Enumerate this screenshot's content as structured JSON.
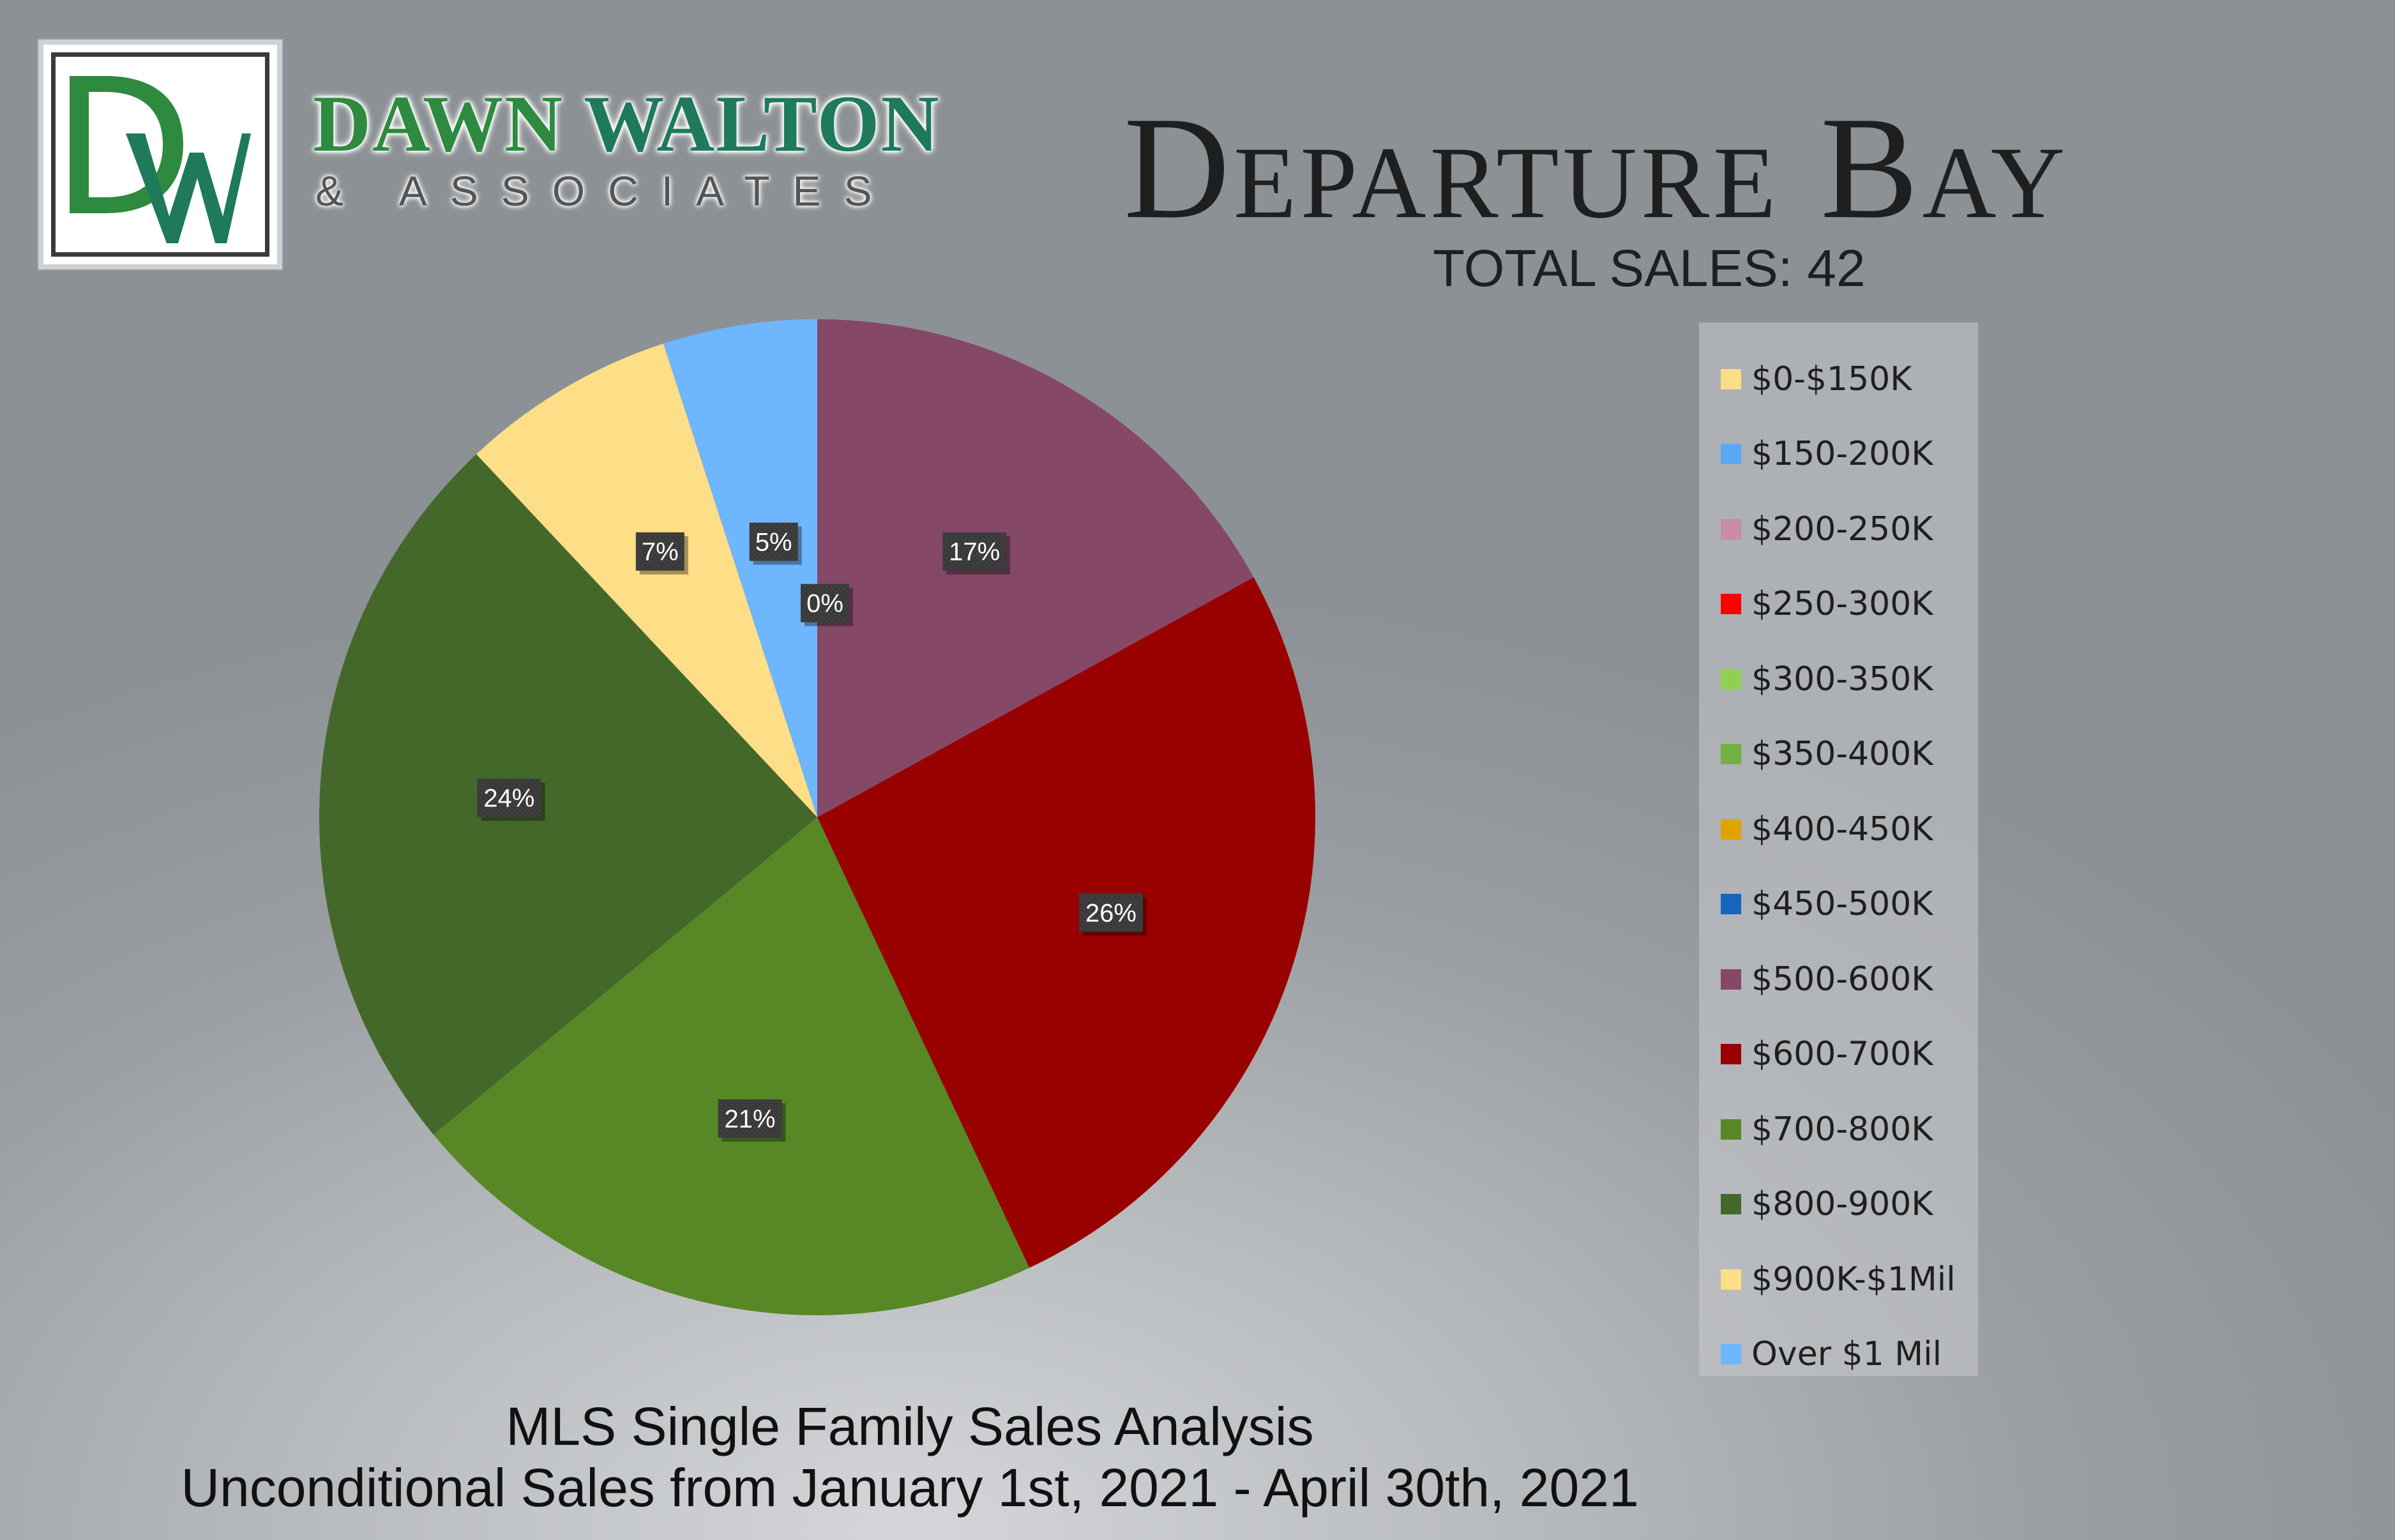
{
  "brand": {
    "logo_letters": "DW",
    "name_part1": "DAWN ",
    "name_part2": "WALTON",
    "subtitle": "& ASSOCIATES",
    "colors": {
      "green": "#2e8a3e",
      "teal": "#1e7a5a"
    }
  },
  "header": {
    "title": "Departure Bay",
    "total_sales": "TOTAL SALES: 42"
  },
  "footer": {
    "line1": "MLS Single Family Sales Analysis",
    "line2": "Unconditional Sales from January 1st, 2021 - April 30th, 2021"
  },
  "chart_data": {
    "type": "pie",
    "start_angle_deg": 0,
    "direction": "clockwise",
    "legend_position": "right",
    "categories": [
      "$0-$150K",
      "$150-200K",
      "$200-250K",
      "$250-300K",
      "$300-350K",
      "$350-400K",
      "$400-450K",
      "$450-500K",
      "$500-600K",
      "$600-700K",
      "$700-800K",
      "$800-900K",
      "$900K-$1Mil",
      "Over $1 Mil"
    ],
    "colors": [
      "#fcde86",
      "#5aa9f5",
      "#c98ba6",
      "#ff0000",
      "#8fd14f",
      "#72b043",
      "#e0a400",
      "#1565c0",
      "#864867",
      "#990000",
      "#578825",
      "#44682a",
      "#fede86",
      "#6eb6fd"
    ],
    "values": [
      0,
      0,
      0,
      0,
      0,
      0,
      0,
      0,
      17,
      26,
      21,
      24,
      7,
      5
    ],
    "data_labels": [
      "0%",
      "",
      "",
      "",
      "",
      "",
      "",
      "",
      "17%",
      "26%",
      "21%",
      "24%",
      "7%",
      "5%"
    ]
  }
}
